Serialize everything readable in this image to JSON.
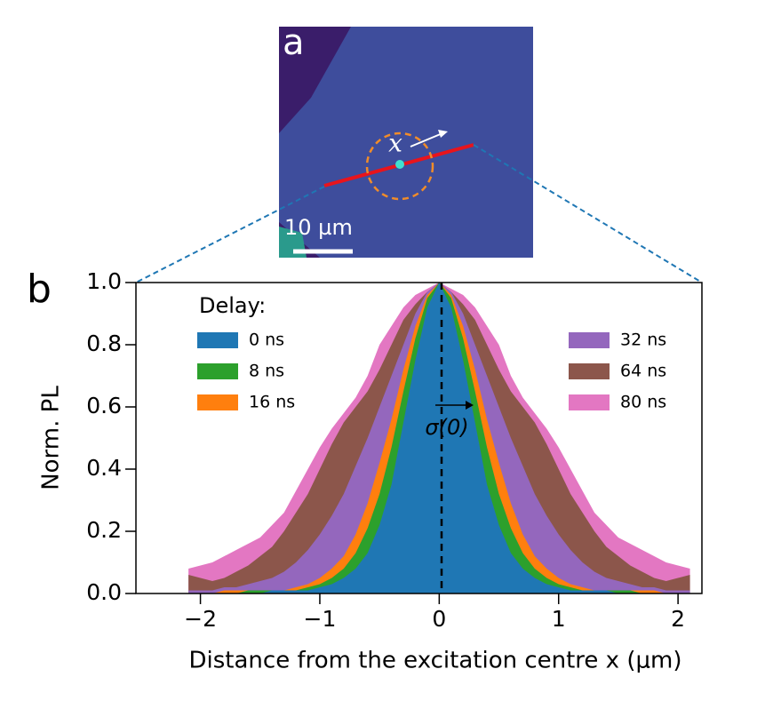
{
  "panel_a": {
    "label": "a",
    "scale_bar": "10 µm",
    "x_label": "x"
  },
  "chart_data": {
    "type": "area",
    "panel_label": "b",
    "xlabel": "Distance from the excitation centre x (μm)",
    "ylabel": "Norm. PL",
    "legend_title": "Delay:",
    "annotation": "σ(0)",
    "x": [
      -2.1,
      -2.0,
      -1.9,
      -1.8,
      -1.7,
      -1.6,
      -1.5,
      -1.4,
      -1.3,
      -1.2,
      -1.1,
      -1.0,
      -0.9,
      -0.8,
      -0.7,
      -0.6,
      -0.5,
      -0.4,
      -0.3,
      -0.2,
      -0.1,
      0,
      0.1,
      0.2,
      0.3,
      0.4,
      0.5,
      0.6,
      0.7,
      0.8,
      0.9,
      1.0,
      1.1,
      1.2,
      1.3,
      1.4,
      1.5,
      1.6,
      1.7,
      1.8,
      1.9,
      2.0,
      2.1
    ],
    "series": [
      {
        "name": "0 ns",
        "color": "#1f77b4",
        "values": [
          0,
          0,
          0,
          0,
          0,
          0,
          0,
          0.01,
          0.01,
          0.01,
          0.01,
          0.02,
          0.03,
          0.05,
          0.08,
          0.13,
          0.22,
          0.35,
          0.55,
          0.75,
          0.92,
          1,
          0.92,
          0.75,
          0.55,
          0.35,
          0.22,
          0.13,
          0.08,
          0.05,
          0.03,
          0.02,
          0.01,
          0.01,
          0.01,
          0.01,
          0,
          0,
          0,
          0,
          0,
          0,
          0
        ]
      },
      {
        "name": "8 ns",
        "color": "#2ca02c",
        "values": [
          0,
          0,
          0,
          0,
          0,
          0.01,
          0.01,
          0.01,
          0.01,
          0.01,
          0.02,
          0.03,
          0.05,
          0.08,
          0.13,
          0.21,
          0.32,
          0.47,
          0.65,
          0.82,
          0.95,
          1,
          0.95,
          0.82,
          0.65,
          0.47,
          0.32,
          0.21,
          0.13,
          0.08,
          0.05,
          0.03,
          0.02,
          0.01,
          0.01,
          0.01,
          0.01,
          0.01,
          0,
          0,
          0,
          0,
          0
        ]
      },
      {
        "name": "16 ns",
        "color": "#ff7f0e",
        "values": [
          0,
          0,
          0,
          0.01,
          0.01,
          0.01,
          0.01,
          0.01,
          0.01,
          0.02,
          0.03,
          0.05,
          0.08,
          0.12,
          0.19,
          0.29,
          0.42,
          0.56,
          0.72,
          0.86,
          0.96,
          1,
          0.96,
          0.86,
          0.72,
          0.56,
          0.42,
          0.29,
          0.19,
          0.12,
          0.08,
          0.05,
          0.03,
          0.02,
          0.01,
          0.01,
          0.01,
          0.01,
          0.01,
          0.01,
          0,
          0,
          0
        ]
      },
      {
        "name": "32 ns",
        "color": "#9467bd",
        "values": [
          0.01,
          0.01,
          0.01,
          0.02,
          0.02,
          0.03,
          0.04,
          0.05,
          0.07,
          0.1,
          0.14,
          0.19,
          0.25,
          0.32,
          0.41,
          0.5,
          0.6,
          0.7,
          0.8,
          0.9,
          0.97,
          1,
          0.97,
          0.9,
          0.8,
          0.7,
          0.6,
          0.5,
          0.41,
          0.32,
          0.25,
          0.19,
          0.14,
          0.1,
          0.07,
          0.05,
          0.04,
          0.03,
          0.02,
          0.02,
          0.01,
          0.01,
          0.01
        ]
      },
      {
        "name": "64 ns",
        "color": "#8c564b",
        "values": [
          0.06,
          0.05,
          0.04,
          0.05,
          0.07,
          0.09,
          0.12,
          0.15,
          0.2,
          0.26,
          0.32,
          0.4,
          0.48,
          0.55,
          0.6,
          0.65,
          0.72,
          0.8,
          0.88,
          0.93,
          0.97,
          1,
          0.97,
          0.93,
          0.88,
          0.8,
          0.72,
          0.65,
          0.6,
          0.55,
          0.48,
          0.4,
          0.32,
          0.26,
          0.2,
          0.15,
          0.12,
          0.09,
          0.07,
          0.05,
          0.04,
          0.05,
          0.06
        ]
      },
      {
        "name": "80 ns",
        "color": "#e377c2",
        "values": [
          0.08,
          0.09,
          0.1,
          0.12,
          0.14,
          0.16,
          0.18,
          0.22,
          0.26,
          0.33,
          0.4,
          0.47,
          0.53,
          0.58,
          0.63,
          0.7,
          0.8,
          0.86,
          0.92,
          0.96,
          0.98,
          1,
          0.98,
          0.96,
          0.92,
          0.86,
          0.8,
          0.7,
          0.63,
          0.58,
          0.53,
          0.47,
          0.4,
          0.33,
          0.26,
          0.22,
          0.18,
          0.16,
          0.14,
          0.12,
          0.1,
          0.09,
          0.08
        ]
      }
    ],
    "xlim": [
      -2.54,
      2.2
    ],
    "ylim": [
      0,
      1
    ],
    "xticks": [
      {
        "value": -2,
        "label": "−2"
      },
      {
        "value": -1,
        "label": "−1"
      },
      0,
      1,
      2
    ],
    "yticks": [
      {
        "value": 0,
        "label": "0.0"
      },
      0.2,
      0.4,
      0.6,
      0.8,
      {
        "value": 1,
        "label": "1.0"
      }
    ],
    "grid": false
  }
}
